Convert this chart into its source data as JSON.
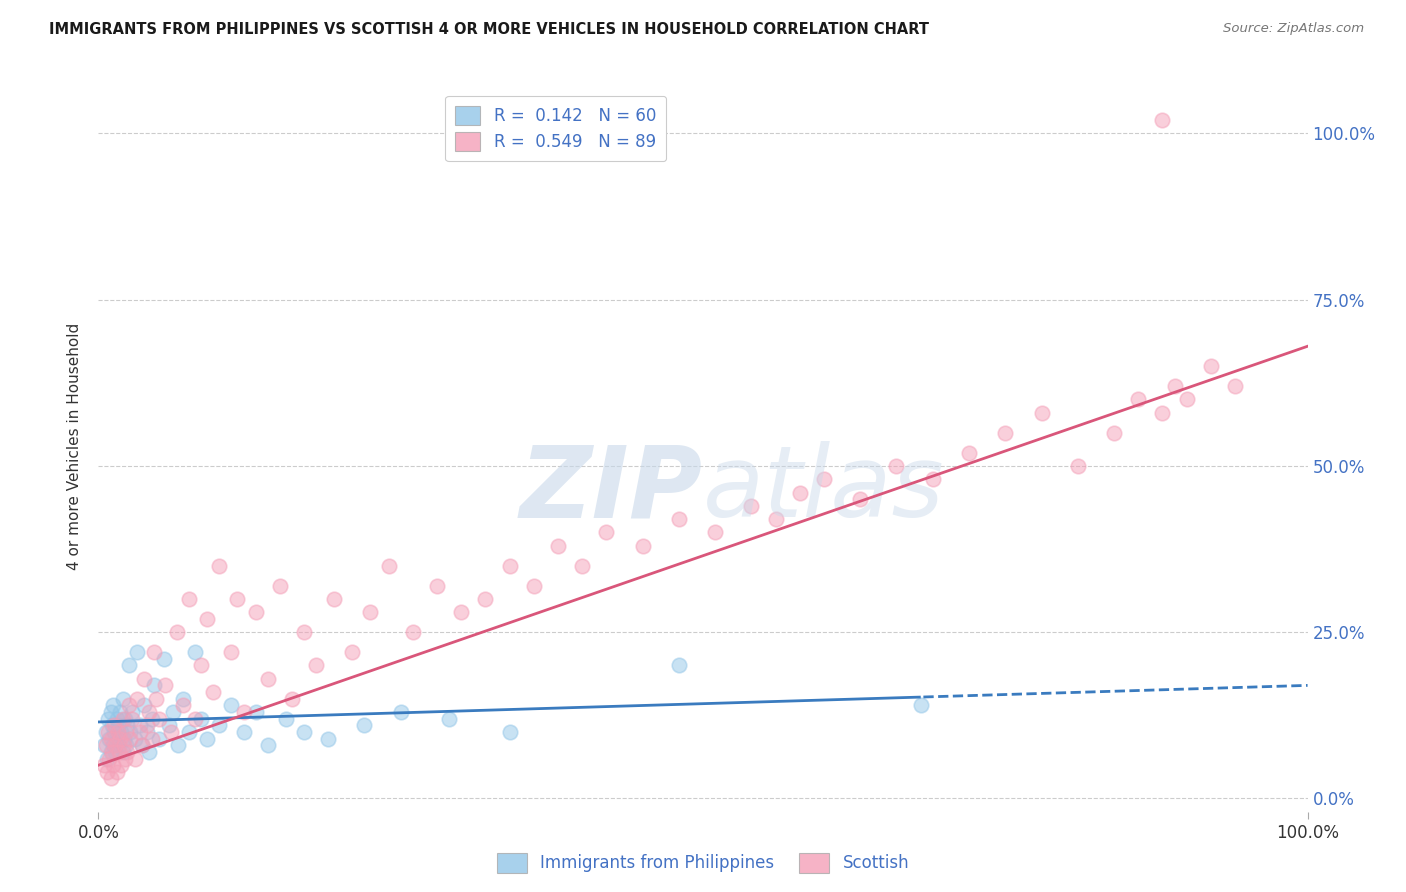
{
  "title": "IMMIGRANTS FROM PHILIPPINES VS SCOTTISH 4 OR MORE VEHICLES IN HOUSEHOLD CORRELATION CHART",
  "source": "Source: ZipAtlas.com",
  "ylabel": "4 or more Vehicles in Household",
  "xlim": [
    0.0,
    1.0
  ],
  "ylim": [
    -0.02,
    1.08
  ],
  "ytick_positions": [
    0.0,
    0.25,
    0.5,
    0.75,
    1.0
  ],
  "ytick_labels_right": [
    "0.0%",
    "25.0%",
    "50.0%",
    "75.0%",
    "100.0%"
  ],
  "xtick_positions": [
    0.0,
    1.0
  ],
  "xtick_labels": [
    "0.0%",
    "100.0%"
  ],
  "blue_R": 0.142,
  "blue_N": 60,
  "pink_R": 0.549,
  "pink_N": 89,
  "blue_color": "#93c6e8",
  "pink_color": "#f4a0b8",
  "blue_line_color": "#3a7bbf",
  "pink_line_color": "#d9567a",
  "axis_label_color": "#4472c4",
  "text_color": "#333333",
  "watermark_color": "#c8d8ea",
  "background_color": "#ffffff",
  "grid_color": "#cccccc",
  "blue_line_intercept": 0.115,
  "blue_line_slope": 0.055,
  "blue_line_solid_end": 0.68,
  "pink_line_intercept": 0.05,
  "pink_line_slope": 0.63,
  "blue_scatter_x": [
    0.005,
    0.006,
    0.007,
    0.008,
    0.009,
    0.01,
    0.01,
    0.011,
    0.012,
    0.012,
    0.013,
    0.014,
    0.015,
    0.015,
    0.016,
    0.017,
    0.018,
    0.019,
    0.02,
    0.02,
    0.021,
    0.022,
    0.023,
    0.024,
    0.025,
    0.026,
    0.028,
    0.03,
    0.032,
    0.034,
    0.036,
    0.038,
    0.04,
    0.042,
    0.044,
    0.046,
    0.05,
    0.054,
    0.058,
    0.062,
    0.066,
    0.07,
    0.075,
    0.08,
    0.085,
    0.09,
    0.1,
    0.11,
    0.12,
    0.13,
    0.14,
    0.155,
    0.17,
    0.19,
    0.22,
    0.25,
    0.29,
    0.34,
    0.48,
    0.68
  ],
  "blue_scatter_y": [
    0.08,
    0.1,
    0.06,
    0.12,
    0.09,
    0.07,
    0.13,
    0.11,
    0.08,
    0.14,
    0.1,
    0.07,
    0.12,
    0.09,
    0.11,
    0.08,
    0.13,
    0.1,
    0.07,
    0.15,
    0.09,
    0.12,
    0.08,
    0.11,
    0.2,
    0.1,
    0.13,
    0.09,
    0.22,
    0.11,
    0.08,
    0.14,
    0.1,
    0.07,
    0.12,
    0.17,
    0.09,
    0.21,
    0.11,
    0.13,
    0.08,
    0.15,
    0.1,
    0.22,
    0.12,
    0.09,
    0.11,
    0.14,
    0.1,
    0.13,
    0.08,
    0.12,
    0.1,
    0.09,
    0.11,
    0.13,
    0.12,
    0.1,
    0.2,
    0.14
  ],
  "pink_scatter_x": [
    0.005,
    0.006,
    0.007,
    0.008,
    0.009,
    0.01,
    0.01,
    0.011,
    0.012,
    0.013,
    0.014,
    0.015,
    0.016,
    0.017,
    0.018,
    0.019,
    0.02,
    0.021,
    0.022,
    0.023,
    0.024,
    0.025,
    0.026,
    0.028,
    0.03,
    0.032,
    0.034,
    0.036,
    0.038,
    0.04,
    0.042,
    0.044,
    0.046,
    0.048,
    0.05,
    0.055,
    0.06,
    0.065,
    0.07,
    0.075,
    0.08,
    0.085,
    0.09,
    0.095,
    0.1,
    0.11,
    0.115,
    0.12,
    0.13,
    0.14,
    0.15,
    0.16,
    0.17,
    0.18,
    0.195,
    0.21,
    0.225,
    0.24,
    0.26,
    0.28,
    0.3,
    0.32,
    0.34,
    0.36,
    0.38,
    0.4,
    0.42,
    0.45,
    0.48,
    0.51,
    0.54,
    0.56,
    0.58,
    0.6,
    0.63,
    0.66,
    0.69,
    0.72,
    0.75,
    0.78,
    0.81,
    0.84,
    0.86,
    0.88,
    0.89,
    0.9,
    0.92,
    0.94,
    0.88
  ],
  "pink_scatter_y": [
    0.05,
    0.08,
    0.04,
    0.1,
    0.06,
    0.03,
    0.09,
    0.07,
    0.05,
    0.11,
    0.08,
    0.04,
    0.1,
    0.07,
    0.09,
    0.05,
    0.12,
    0.08,
    0.06,
    0.1,
    0.07,
    0.14,
    0.09,
    0.12,
    0.06,
    0.15,
    0.1,
    0.08,
    0.18,
    0.11,
    0.13,
    0.09,
    0.22,
    0.15,
    0.12,
    0.17,
    0.1,
    0.25,
    0.14,
    0.3,
    0.12,
    0.2,
    0.27,
    0.16,
    0.35,
    0.22,
    0.3,
    0.13,
    0.28,
    0.18,
    0.32,
    0.15,
    0.25,
    0.2,
    0.3,
    0.22,
    0.28,
    0.35,
    0.25,
    0.32,
    0.28,
    0.3,
    0.35,
    0.32,
    0.38,
    0.35,
    0.4,
    0.38,
    0.42,
    0.4,
    0.44,
    0.42,
    0.46,
    0.48,
    0.45,
    0.5,
    0.48,
    0.52,
    0.55,
    0.58,
    0.5,
    0.55,
    0.6,
    0.58,
    0.62,
    0.6,
    0.65,
    0.62,
    1.02
  ]
}
